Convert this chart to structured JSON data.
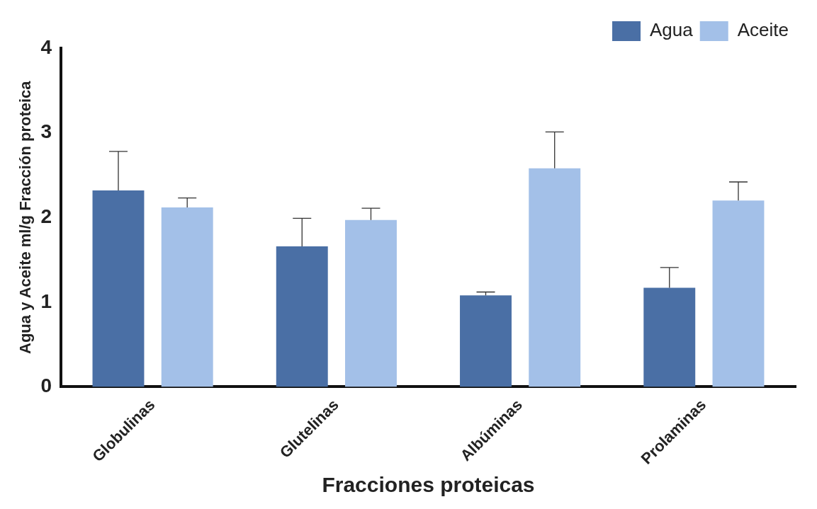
{
  "chart_data": {
    "type": "bar",
    "xlabel": "Fracciones proteicas",
    "ylabel": "Agua y Aceite ml/g Fracción proteica",
    "categories": [
      "Globulinas",
      "Glutelinas",
      "Albúminas",
      "Prolaminas"
    ],
    "series": [
      {
        "name": "Agua",
        "color": "#4a6fa5",
        "values": [
          2.32,
          1.66,
          1.08,
          1.17
        ],
        "errors": [
          [
            2.32,
            2.78
          ],
          [
            1.66,
            1.99
          ],
          [
            1.08,
            1.12
          ],
          [
            1.17,
            1.41
          ]
        ]
      },
      {
        "name": "Aceite",
        "color": "#a3c0e8",
        "values": [
          2.12,
          1.97,
          2.58,
          2.2
        ],
        "errors": [
          [
            2.12,
            2.23
          ],
          [
            1.97,
            2.11
          ],
          [
            2.58,
            3.01
          ],
          [
            2.2,
            2.42
          ]
        ]
      }
    ],
    "ylim": [
      0,
      4
    ],
    "yticks": [
      0,
      1,
      2,
      3,
      4
    ],
    "grid": false,
    "legend": "top right"
  }
}
